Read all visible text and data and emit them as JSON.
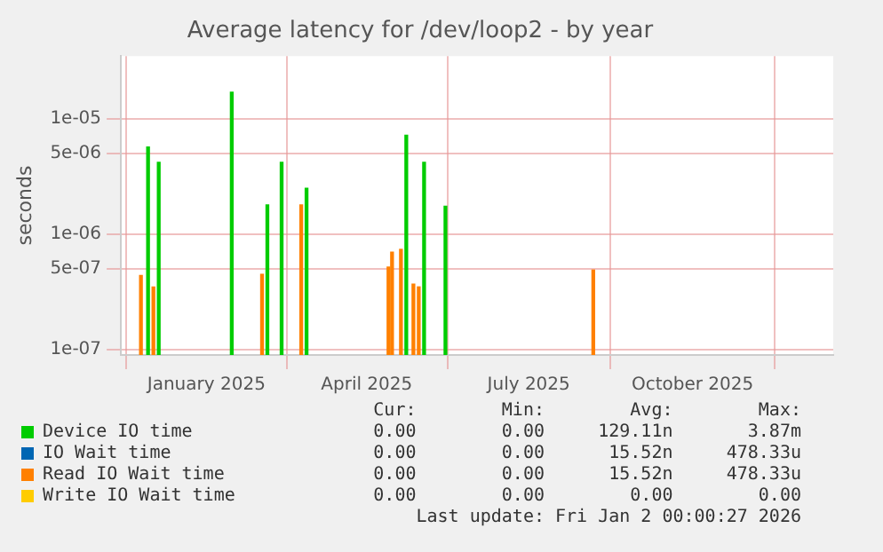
{
  "chart_data": {
    "type": "bar",
    "title": "Average latency for /dev/loop2 - by year",
    "ylabel": "seconds",
    "log": "y",
    "grid": true,
    "legend": "bottom",
    "xlim": [
      "2024-11-28",
      "2026-01-02"
    ],
    "xticks": [
      {
        "value": "2025-01-15",
        "label": "January 2025"
      },
      {
        "value": "2025-04-15",
        "label": "April 2025"
      },
      {
        "value": "2025-07-15",
        "label": "July 2025"
      },
      {
        "value": "2025-10-15",
        "label": "October 2025"
      }
    ],
    "ylim": [
      9e-08,
      3.5e-05
    ],
    "yticks": [
      {
        "value": 1e-07,
        "label": "1e-07"
      },
      {
        "value": 5e-07,
        "label": "5e-07"
      },
      {
        "value": 1e-06,
        "label": "1e-06"
      },
      {
        "value": 5e-06,
        "label": "5e-06"
      },
      {
        "value": 1e-05,
        "label": "1e-05"
      }
    ],
    "series": [
      {
        "name": "Device IO time",
        "color": "#00cc00",
        "x": [
          "2024-12-11",
          "2024-12-17",
          "2025-01-27",
          "2025-02-16",
          "2025-02-24",
          "2025-03-10",
          "2025-05-05",
          "2025-05-15",
          "2025-05-27"
        ],
        "values": [
          5.7e-06,
          4.2e-06,
          1.7e-05,
          1.8e-06,
          4.2e-06,
          2.5e-06,
          7.2e-06,
          4.2e-06,
          1.75e-06
        ]
      },
      {
        "name": "IO Wait time",
        "color": "#0066b3"
      },
      {
        "name": "Read IO Wait time",
        "color": "#ff8000",
        "x": [
          "2024-12-10",
          "2024-12-17",
          "2025-02-16",
          "2025-03-10",
          "2025-04-28",
          "2025-04-30",
          "2025-05-05",
          "2025-05-12",
          "2025-05-15",
          "2025-08-21"
        ],
        "values": [
          4.4e-07,
          3.5e-07,
          4.5e-07,
          1.8e-06,
          5.2e-07,
          7e-07,
          7.4e-07,
          3.7e-07,
          3.5e-07,
          4.9e-07
        ]
      },
      {
        "name": "Write IO Wait time",
        "color": "#ffcc00"
      }
    ],
    "annotations": [
      "Cur:",
      "Min:",
      "Avg:",
      "Max:",
      "0.00",
      "0.00",
      "129.11n",
      "3.87m",
      "0.00",
      "0.00",
      "15.52n",
      "478.33u",
      "0.00",
      "0.00",
      "15.52n",
      "478.33u",
      "0.00",
      "0.00",
      "0.00",
      "0.00",
      "Last update: Fri Jan  2 00:00:27 2026"
    ]
  }
}
